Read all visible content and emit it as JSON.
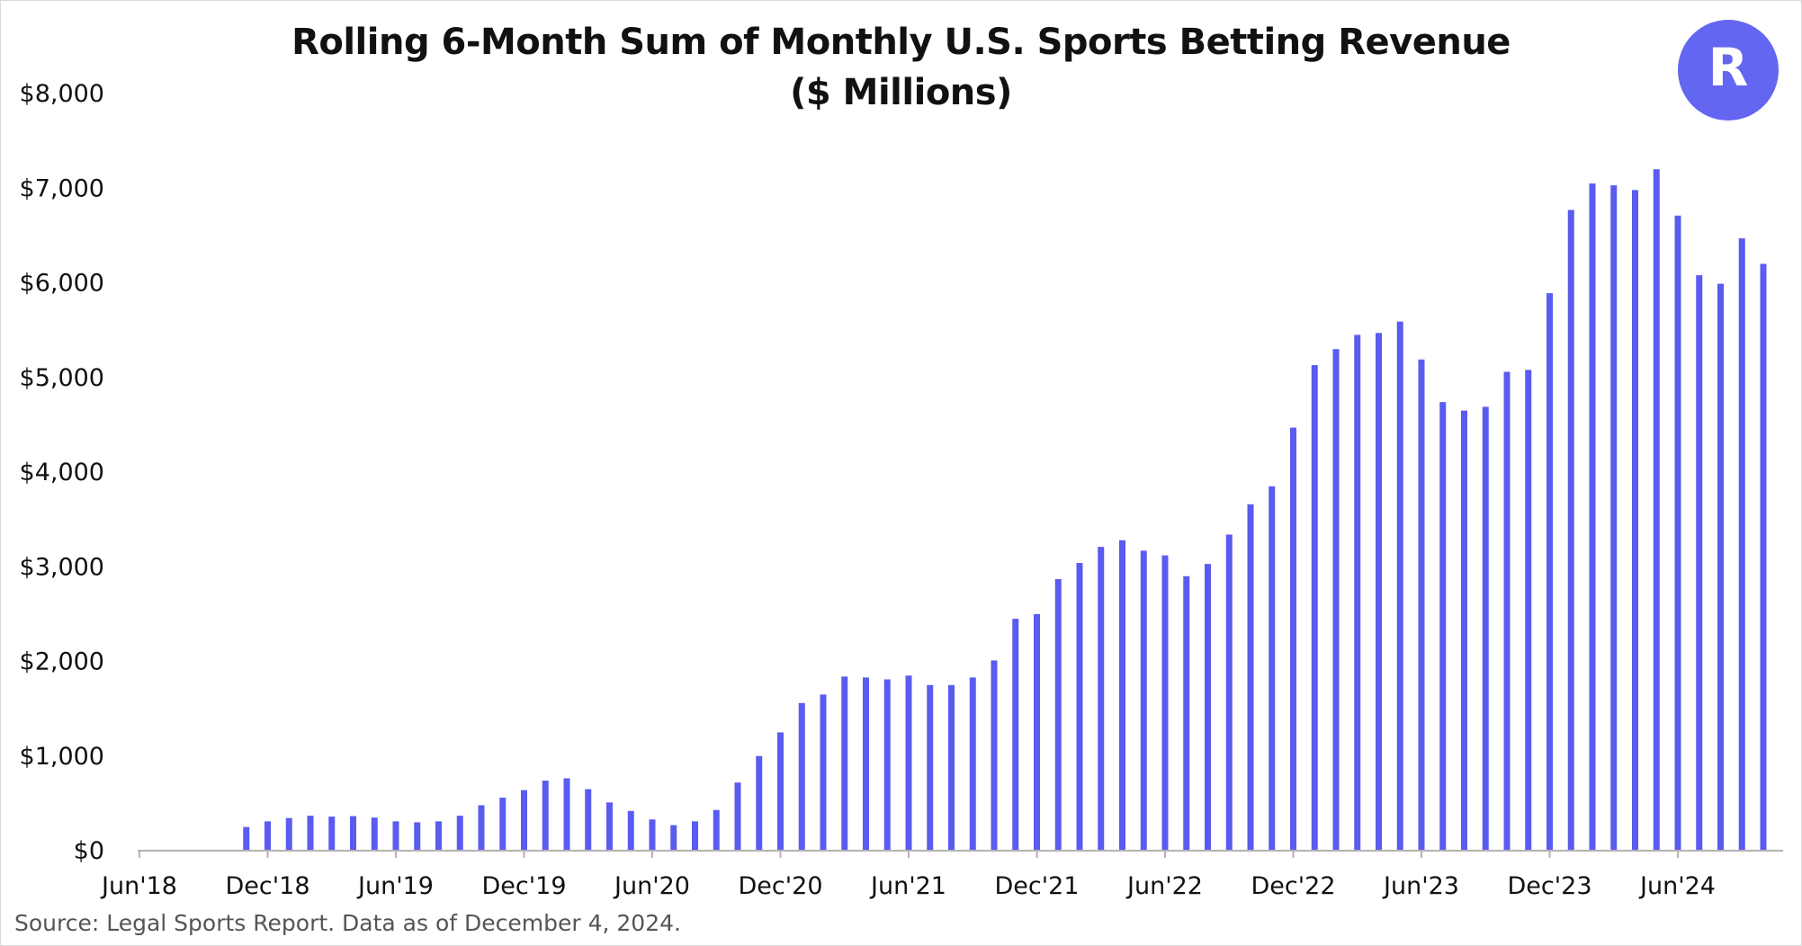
{
  "title": "Rolling 6-Month Sum of Monthly U.S. Sports Betting Revenue",
  "subtitle": "($ Millions)",
  "source": "Source: Legal Sports Report. Data as of December 4, 2024.",
  "logo": {
    "icon": "robinhood-style-r-logo",
    "background_color": "#6366f1",
    "letter": "R"
  },
  "colors": {
    "bar": "#5b5bef",
    "axis": "#b3b3b3",
    "text": "#111111"
  },
  "chart_data": {
    "type": "bar",
    "title": "Rolling 6-Month Sum of Monthly U.S. Sports Betting Revenue",
    "subtitle": "($ Millions)",
    "ylim": [
      0,
      8000
    ],
    "yticks": [
      0,
      1000,
      2000,
      3000,
      4000,
      5000,
      6000,
      7000,
      8000
    ],
    "ytick_labels": [
      "$0",
      "$1,000",
      "$2,000",
      "$3,000",
      "$4,000",
      "$5,000",
      "$6,000",
      "$7,000",
      "$8,000"
    ],
    "xtick_labels": [
      "Jun'18",
      "Dec'18",
      "Jun'19",
      "Dec'19",
      "Jun'20",
      "Dec'20",
      "Jun'21",
      "Dec'21",
      "Jun'22",
      "Dec'22",
      "Jun'23",
      "Dec'23",
      "Jun'24"
    ],
    "categories": [
      "Jun'18",
      "Jul'18",
      "Aug'18",
      "Sep'18",
      "Oct'18",
      "Nov'18",
      "Dec'18",
      "Jan'19",
      "Feb'19",
      "Mar'19",
      "Apr'19",
      "May'19",
      "Jun'19",
      "Jul'19",
      "Aug'19",
      "Sep'19",
      "Oct'19",
      "Nov'19",
      "Dec'19",
      "Jan'20",
      "Feb'20",
      "Mar'20",
      "Apr'20",
      "May'20",
      "Jun'20",
      "Jul'20",
      "Aug'20",
      "Sep'20",
      "Oct'20",
      "Nov'20",
      "Dec'20",
      "Jan'21",
      "Feb'21",
      "Mar'21",
      "Apr'21",
      "May'21",
      "Jun'21",
      "Jul'21",
      "Aug'21",
      "Sep'21",
      "Oct'21",
      "Nov'21",
      "Dec'21",
      "Jan'22",
      "Feb'22",
      "Mar'22",
      "Apr'22",
      "May'22",
      "Jun'22",
      "Jul'22",
      "Aug'22",
      "Sep'22",
      "Oct'22",
      "Nov'22",
      "Dec'22",
      "Jan'23",
      "Feb'23",
      "Mar'23",
      "Apr'23",
      "May'23",
      "Jun'23",
      "Jul'23",
      "Aug'23",
      "Sep'23",
      "Oct'23",
      "Nov'23",
      "Dec'23",
      "Jan'24",
      "Feb'24",
      "Mar'24",
      "Apr'24",
      "May'24",
      "Jun'24",
      "Jul'24",
      "Aug'24",
      "Sep'24",
      "Oct'24"
    ],
    "values": [
      null,
      null,
      null,
      null,
      null,
      250,
      310,
      345,
      370,
      360,
      365,
      350,
      310,
      300,
      310,
      370,
      480,
      560,
      640,
      740,
      765,
      650,
      510,
      420,
      330,
      270,
      310,
      430,
      720,
      1000,
      1250,
      1560,
      1650,
      1840,
      1830,
      1810,
      1850,
      1750,
      1750,
      1830,
      2010,
      2450,
      2500,
      2870,
      3040,
      3210,
      3280,
      3170,
      3120,
      2900,
      3030,
      3340,
      3660,
      3850,
      4470,
      5130,
      5300,
      5450,
      5470,
      5590,
      5190,
      4740,
      4650,
      4690,
      5060,
      5080,
      5890,
      6770,
      7050,
      7030,
      6980,
      7200,
      6710,
      6080,
      5990,
      6470,
      6200
    ]
  }
}
